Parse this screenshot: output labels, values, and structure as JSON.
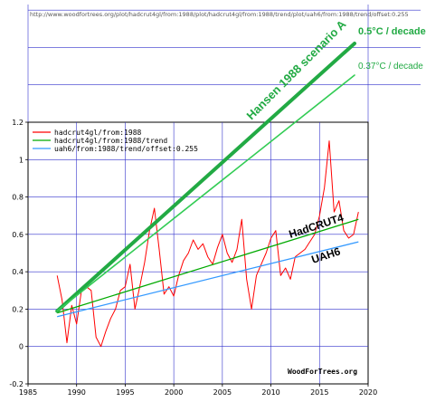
{
  "header_url": "http://www.woodfortrees.org/plot/hadcrut4gl/from:1988/plot/hadcrut4gl/from:1988/trend/plot/uah6/from:1988/trend/offset:0.255",
  "chart_data": {
    "type": "line",
    "x_range": [
      1985,
      2020
    ],
    "y_range": [
      -0.2,
      1.2
    ],
    "x_ticks": [
      "1985",
      "1990",
      "1995",
      "2000",
      "2005",
      "2010",
      "2015",
      "2020"
    ],
    "y_ticks": [
      "-0.2",
      "0",
      "0.2",
      "0.4",
      "0.6",
      "0.8",
      "1",
      "1.2"
    ],
    "grid": true,
    "legend_position": "top-left",
    "watermark": "WoodForTrees.org",
    "series": [
      {
        "name": "hadcrut4gl/from:1988",
        "color": "#ff0000",
        "x": [
          1988.0,
          1988.5,
          1989.0,
          1989.5,
          1990.0,
          1990.5,
          1991.0,
          1991.5,
          1992.0,
          1992.5,
          1993.0,
          1993.5,
          1994.0,
          1994.5,
          1995.0,
          1995.5,
          1996.0,
          1996.5,
          1997.0,
          1997.5,
          1998.0,
          1998.5,
          1999.0,
          1999.5,
          2000.0,
          2000.5,
          2001.0,
          2001.5,
          2002.0,
          2002.5,
          2003.0,
          2003.5,
          2004.0,
          2004.5,
          2005.0,
          2005.5,
          2006.0,
          2006.5,
          2007.0,
          2007.5,
          2008.0,
          2008.5,
          2009.0,
          2009.5,
          2010.0,
          2010.5,
          2011.0,
          2011.5,
          2012.0,
          2012.5,
          2013.0,
          2013.5,
          2014.0,
          2014.5,
          2015.0,
          2015.5,
          2016.0,
          2016.5,
          2017.0,
          2017.5,
          2018.0,
          2018.5,
          2019.0
        ],
        "values": [
          0.38,
          0.25,
          0.02,
          0.22,
          0.12,
          0.3,
          0.32,
          0.3,
          0.05,
          0.0,
          0.08,
          0.15,
          0.2,
          0.3,
          0.32,
          0.44,
          0.2,
          0.32,
          0.45,
          0.62,
          0.74,
          0.52,
          0.28,
          0.32,
          0.27,
          0.38,
          0.46,
          0.5,
          0.57,
          0.52,
          0.55,
          0.48,
          0.44,
          0.53,
          0.6,
          0.5,
          0.45,
          0.52,
          0.68,
          0.36,
          0.2,
          0.38,
          0.44,
          0.5,
          0.58,
          0.62,
          0.38,
          0.42,
          0.36,
          0.48,
          0.5,
          0.52,
          0.56,
          0.6,
          0.7,
          0.85,
          1.1,
          0.72,
          0.78,
          0.62,
          0.58,
          0.6,
          0.72
        ]
      },
      {
        "name": "hadcrut4gl/from:1988/trend",
        "color": "#00aa00",
        "x": [
          1988,
          2019
        ],
        "values": [
          0.18,
          0.68
        ]
      },
      {
        "name": "uah6/from:1988/trend/offset:0.255",
        "color": "#3399ff",
        "x": [
          1988,
          2019
        ],
        "values": [
          0.16,
          0.56
        ]
      }
    ],
    "overlay": {
      "scenario_label": "Hansen 1988 scenario A",
      "line_a_label": "0.5°C / decade",
      "line_b_label": "0.37°C / decade",
      "hadcrut_label": "HadCRUT4",
      "uah_label": "UAH6",
      "line_a_color": "#22aa44",
      "line_b_color": "#33cc55",
      "annotation_color": "#22aa44"
    }
  }
}
